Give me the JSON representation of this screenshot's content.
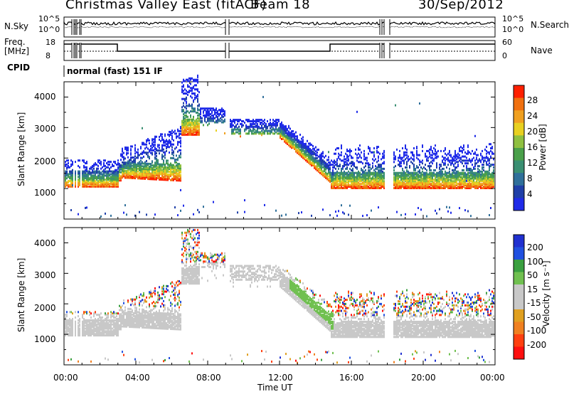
{
  "header": {
    "station": "Christmas Valley East (fitACF)",
    "beam": "Beam 18",
    "date": "30/Sep/2012"
  },
  "params": {
    "nsky_label": "N.Sky",
    "nsearch_label": "N.Search",
    "nsky_ticks": [
      "10^5",
      "10^0"
    ],
    "nsearch_ticks": [
      "10^5",
      "10^0"
    ],
    "freq_label": "Freq.",
    "freq_unit": "[MHz]",
    "freq_ticks": [
      "18",
      "8"
    ],
    "nave_label": "Nave",
    "nave_ticks": [
      "60",
      "0"
    ],
    "cpid_label": "CPID",
    "cpid_value": "normal (fast) 151 IF"
  },
  "colors": {
    "power_scale": [
      "#1f2be8",
      "#1f3fa8",
      "#2f6f9a",
      "#3a8f72",
      "#4aa04a",
      "#8fc040",
      "#e8d020",
      "#f0a020",
      "#f07010",
      "#ff2000"
    ],
    "velocity_scale": [
      "#2030d0",
      "#2050e0",
      "#3aa040",
      "#70c050",
      "#c8c8c8",
      "#c8c8c8",
      "#e0a020",
      "#f08020",
      "#ff4010",
      "#ff1010"
    ]
  },
  "chart_data": [
    {
      "type": "heatmap",
      "name": "Power",
      "ylabel": "Slant Range [km]",
      "yticks": [
        "1000",
        "2000",
        "3000",
        "4000"
      ],
      "ylim": [
        0,
        4500
      ],
      "colorbar_label": "Power [dB]",
      "colorbar_ticks": [
        "28",
        "24",
        "20",
        "16",
        "12",
        "8",
        "4"
      ]
    },
    {
      "type": "heatmap",
      "name": "Velocity",
      "ylabel": "Slant Range [km]",
      "yticks": [
        "1000",
        "2000",
        "3000",
        "4000"
      ],
      "ylim": [
        0,
        4500
      ],
      "colorbar_label": "Velocity [m s⁻¹]",
      "colorbar_ticks": [
        "200",
        "100",
        "50",
        "15",
        "-15",
        "-50",
        "-100",
        "-200"
      ]
    }
  ],
  "xaxis": {
    "label": "Time UT",
    "ticks": [
      "00:00",
      "04:00",
      "08:00",
      "12:00",
      "16:00",
      "20:00",
      "00:00"
    ]
  }
}
